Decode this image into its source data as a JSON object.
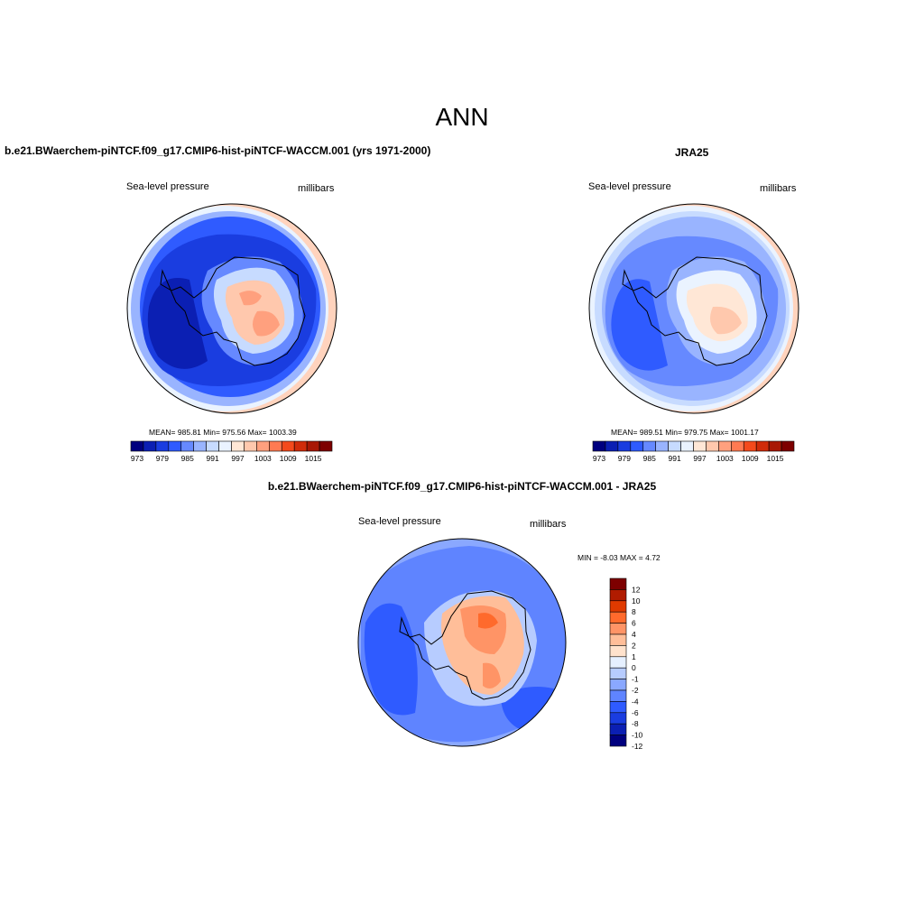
{
  "title": "ANN",
  "panels": [
    {
      "title": "b.e21.BWaerchem-piNTCF.f09_g17.CMIP6-hist-piNTCF-WACCM.001 (yrs 1971-2000)",
      "variable": "Sea-level pressure",
      "units": "millibars",
      "stats": "MEAN= 985.81   Min= 975.56   Max= 1003.39"
    },
    {
      "title": "JRA25",
      "variable": "Sea-level pressure",
      "units": "millibars",
      "stats": "MEAN= 989.51   Min= 979.75   Max= 1001.17"
    },
    {
      "title": "b.e21.BWaerchem-piNTCF.f09_g17.CMIP6-hist-piNTCF-WACCM.001 - JRA25",
      "variable": "Sea-level pressure",
      "units": "millibars",
      "stats": "MIN =  -8.03 MAX =   4.72"
    }
  ],
  "field_colorbar": {
    "colors": [
      "#00007f",
      "#0b1fb3",
      "#1a3de0",
      "#2f5bff",
      "#6689ff",
      "#99b4ff",
      "#c7dbff",
      "#eaf3ff",
      "#ffe7d6",
      "#ffc8ad",
      "#ffa07e",
      "#ff7a52",
      "#f44a1c",
      "#d02c0a",
      "#a81805",
      "#7d0000"
    ],
    "tick_labels": [
      "973",
      "979",
      "985",
      "991",
      "997",
      "1003",
      "1009",
      "1015"
    ]
  },
  "diff_colorbar": {
    "colors": [
      "#7d0000",
      "#b01b00",
      "#e03a00",
      "#ff6a2c",
      "#ff9466",
      "#ffbe99",
      "#ffe2cc",
      "#e6f0ff",
      "#b7ccff",
      "#8aa8ff",
      "#5f84ff",
      "#2f5bff",
      "#1a3de0",
      "#0b1fb3",
      "#00007f"
    ],
    "tick_labels": [
      "12",
      "10",
      "8",
      "6",
      "4",
      "2",
      "1",
      "0",
      "-1",
      "-2",
      "-4",
      "-6",
      "-8",
      "-10",
      "-12"
    ]
  }
}
